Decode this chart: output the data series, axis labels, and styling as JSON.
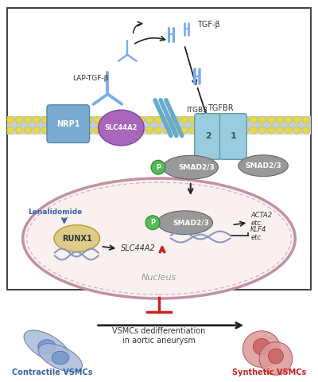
{
  "fig_width": 4.0,
  "fig_height": 4.8,
  "dpi": 100,
  "bg_color": "#ffffff",
  "box_color": "#444444",
  "nrp1_color": "#7aaad0",
  "nrp1_label": "NRP1",
  "slc44a2_color": "#aa66bb",
  "slc44a2_label": "SLC44A2",
  "itgb3_label": "ITGB3",
  "tgfbr_color": "#99ccdd",
  "tgfbr_label": "TGFBR",
  "smad23_color": "#999999",
  "smad23_label": "SMAD2/3",
  "p_color": "#55bb55",
  "p_label": "P",
  "runx1_color": "#ddcc88",
  "runx1_label": "RUNX1",
  "slc44a2_gene_label": "SLC44A2",
  "acta2_label": "ACTA2\netc.",
  "klf4_label": "KLF4\netc.",
  "tgfb_label": "TGF-β",
  "lap_tgfb_label": "LAP-TGF-β",
  "lenalidomide_label": "Lenalidomide",
  "blue_color": "#3366aa",
  "red_color": "#cc2222",
  "arrow_color": "#222222",
  "membrane_dot_color": "#e8d848",
  "membrane_dot_edge": "#c8b818",
  "membrane_bg_color": "#c8d8e8",
  "membrane_inner_color": "#b8c8d8",
  "vsmc_dediff_label": "VSMCs dedifferentiation\nin aortic aneurysm",
  "contractile_label": "Contractile VSMCs",
  "synthetic_label": "Synthetic VSMCs",
  "contractile_cell_color": "#aabbd8",
  "contractile_nucleus_color": "#7799cc",
  "synthetic_cell_color": "#dd9999",
  "synthetic_nucleus_color": "#cc6666",
  "cell_body_color": "#faf0f0",
  "cell_border_color": "#c090a8",
  "nucleus_label": "Nucleus",
  "dna_color": "#8899bb"
}
